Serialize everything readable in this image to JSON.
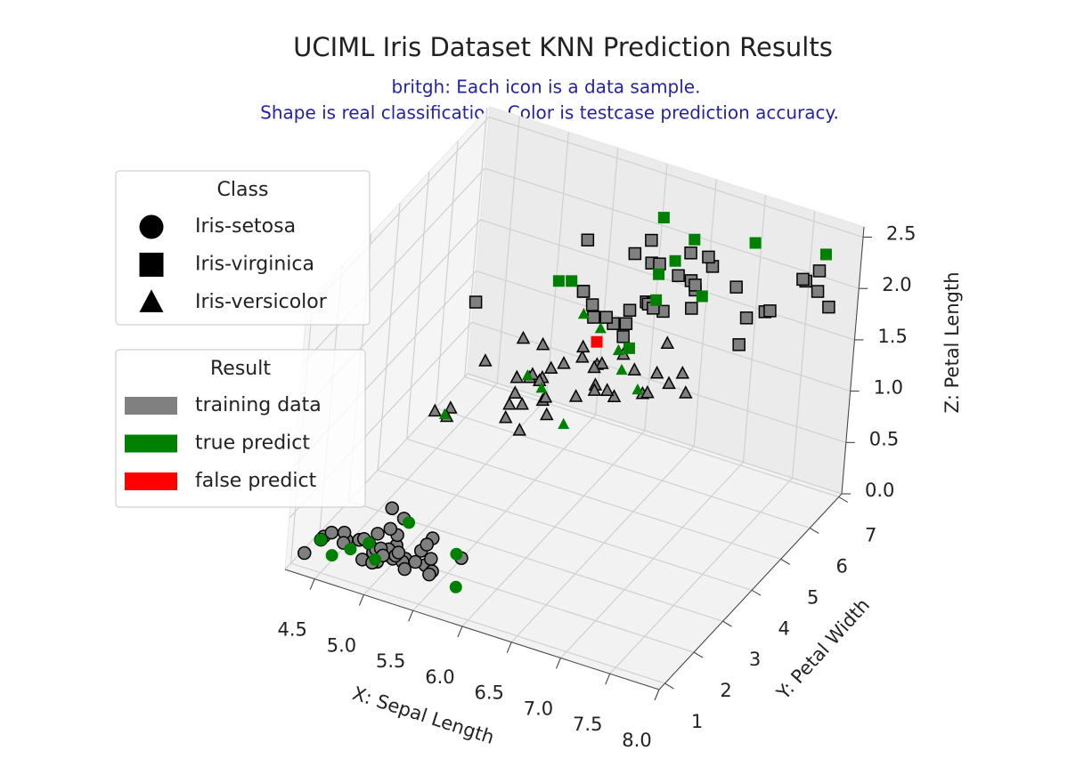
{
  "chart_data": {
    "type": "scatter3d",
    "title": "UCIML Iris Dataset KNN Prediction Results",
    "subtitle": [
      "britgh: Each icon is a data sample.",
      "Shape is real classification. Color is testcase prediction accuracy."
    ],
    "xlabel": "X: Sepal Length",
    "ylabel": "Y: Petal Width",
    "zlabel": "Z: Petal Length",
    "xlim": [
      4.2,
      8.0
    ],
    "ylim": [
      0.8,
      7.1
    ],
    "zlim": [
      0.0,
      2.6
    ],
    "xticks": [
      4.5,
      {
        "value": 5,
        "label": "5.0"
      },
      5.5,
      {
        "value": 6,
        "label": "6.0"
      },
      6.5,
      {
        "value": 7,
        "label": "7.0"
      },
      7.5,
      {
        "value": 8,
        "label": "8.0"
      }
    ],
    "yticks": [
      1,
      2,
      3,
      4,
      5,
      6,
      7
    ],
    "zticks": [
      {
        "value": 0,
        "label": "0.0"
      },
      0.5,
      {
        "value": 1,
        "label": "1.0"
      },
      1.5,
      {
        "value": 2,
        "label": "2.0"
      },
      2.5
    ],
    "grid": true,
    "legends": [
      {
        "title": "Class",
        "entries": [
          {
            "name": "Iris-setosa",
            "marker": "circle"
          },
          {
            "name": "Iris-virginica",
            "marker": "square"
          },
          {
            "name": "Iris-versicolor",
            "marker": "triangle"
          }
        ]
      },
      {
        "title": "Result",
        "entries": [
          {
            "name": "training data",
            "color": "#808080"
          },
          {
            "name": "true predict",
            "color": "#008000"
          },
          {
            "name": "false predict",
            "color": "#ff0000"
          }
        ]
      }
    ],
    "series": [
      {
        "marker": "circle",
        "color": "#808080",
        "edgecolor": "#000000",
        "x": [
          5.1,
          4.9,
          4.6,
          5.0,
          5.4,
          4.6,
          5.0,
          4.4,
          5.4,
          4.8,
          4.8,
          4.3,
          5.4,
          5.1,
          5.7,
          5.1,
          5.4,
          5.1,
          5.1,
          4.8,
          5.0,
          5.0,
          5.2,
          5.2,
          4.7,
          5.4,
          5.2,
          5.5,
          4.9,
          5.0,
          5.5,
          4.9,
          5.1,
          5.0,
          4.5,
          4.4,
          5.0,
          4.8,
          5.1,
          4.6,
          5.3,
          5.0
        ],
        "y": [
          1.4,
          1.4,
          1.5,
          1.4,
          1.7,
          1.4,
          1.5,
          1.4,
          1.5,
          1.6,
          1.4,
          1.1,
          1.3,
          1.4,
          1.7,
          1.5,
          1.7,
          1.5,
          1.7,
          1.9,
          1.6,
          1.6,
          1.5,
          1.4,
          1.6,
          1.5,
          1.5,
          1.4,
          1.5,
          1.2,
          1.3,
          1.4,
          1.5,
          1.3,
          1.3,
          1.3,
          1.6,
          1.4,
          1.6,
          1.4,
          1.5,
          1.4
        ],
        "z": [
          0.2,
          0.2,
          0.2,
          0.2,
          0.4,
          0.3,
          0.2,
          0.2,
          0.2,
          0.2,
          0.1,
          0.1,
          0.4,
          0.3,
          0.3,
          0.3,
          0.2,
          0.4,
          0.5,
          0.2,
          0.2,
          0.4,
          0.2,
          0.2,
          0.2,
          0.4,
          0.1,
          0.2,
          0.2,
          0.2,
          0.2,
          0.1,
          0.2,
          0.3,
          0.3,
          0.2,
          0.6,
          0.3,
          0.2,
          0.2,
          0.2,
          0.2
        ]
      },
      {
        "marker": "triangle",
        "color": "#808080",
        "edgecolor": "#000000",
        "x": [
          7.0,
          6.9,
          5.5,
          6.5,
          5.7,
          4.9,
          6.6,
          5.2,
          5.0,
          5.9,
          6.1,
          5.6,
          6.7,
          5.6,
          5.8,
          6.2,
          5.6,
          6.1,
          6.3,
          6.1,
          6.4,
          6.8,
          6.7,
          6.0,
          5.7,
          5.5,
          5.5,
          5.8,
          5.4,
          6.0,
          6.7,
          6.3,
          5.6,
          5.5,
          6.1,
          5.8,
          5.6,
          5.7,
          6.2,
          5.1,
          5.7
        ],
        "y": [
          4.7,
          4.9,
          4.0,
          4.6,
          4.5,
          3.3,
          4.6,
          3.9,
          3.5,
          4.2,
          4.7,
          3.6,
          4.4,
          4.5,
          4.1,
          4.5,
          3.9,
          4.0,
          4.9,
          4.7,
          4.3,
          4.8,
          5.0,
          4.5,
          3.5,
          3.8,
          3.7,
          3.9,
          4.5,
          4.5,
          4.7,
          4.4,
          4.1,
          4.0,
          4.6,
          4.0,
          4.2,
          4.2,
          4.3,
          3.0,
          4.1
        ],
        "z": [
          1.4,
          1.5,
          1.3,
          1.5,
          1.3,
          1.0,
          1.3,
          1.4,
          1.0,
          1.5,
          1.4,
          1.3,
          1.4,
          1.5,
          1.0,
          1.5,
          1.1,
          1.3,
          1.5,
          1.2,
          1.3,
          1.4,
          1.7,
          1.5,
          1.0,
          1.1,
          1.0,
          1.2,
          1.5,
          1.6,
          1.5,
          1.3,
          1.3,
          1.3,
          1.4,
          1.2,
          1.3,
          1.3,
          1.3,
          1.1,
          1.3
        ]
      },
      {
        "marker": "square",
        "color": "#808080",
        "edgecolor": "#000000",
        "x": [
          5.8,
          7.1,
          6.3,
          7.6,
          4.9,
          7.3,
          6.7,
          6.5,
          6.4,
          6.8,
          5.8,
          6.4,
          6.5,
          7.7,
          6.9,
          7.7,
          6.3,
          6.7,
          7.2,
          6.2,
          6.1,
          7.2,
          7.4,
          7.9,
          6.4,
          6.1,
          7.7,
          6.3,
          6.4,
          6.0,
          6.7,
          6.9,
          5.8,
          6.8,
          6.7,
          6.3,
          6.2,
          5.9
        ],
        "y": [
          5.1,
          5.9,
          5.6,
          6.6,
          4.5,
          6.3,
          5.8,
          5.1,
          5.3,
          5.5,
          5.1,
          5.3,
          5.5,
          6.7,
          5.7,
          6.7,
          4.9,
          5.7,
          6.0,
          4.8,
          4.9,
          5.8,
          6.1,
          6.4,
          5.6,
          5.6,
          6.1,
          5.6,
          5.5,
          4.8,
          5.6,
          5.1,
          5.1,
          5.9,
          5.2,
          5.0,
          5.4,
          5.1
        ],
        "z": [
          1.9,
          2.1,
          1.8,
          2.1,
          1.7,
          1.8,
          1.8,
          2.0,
          1.9,
          2.1,
          2.4,
          2.3,
          1.8,
          2.2,
          2.3,
          2.0,
          1.8,
          2.1,
          1.8,
          1.8,
          1.8,
          1.6,
          1.9,
          2.0,
          2.2,
          1.4,
          2.3,
          2.4,
          1.8,
          1.8,
          2.4,
          2.3,
          1.9,
          2.3,
          2.3,
          1.9,
          2.3,
          1.8
        ]
      },
      {
        "marker": "circle",
        "color": "#008000",
        "x": [
          4.7,
          4.9,
          5.8,
          5.7,
          4.6,
          4.8,
          4.4,
          5.1
        ],
        "y": [
          1.3,
          1.5,
          1.2,
          1.5,
          1.0,
          1.6,
          1.3,
          1.9
        ],
        "z": [
          0.2,
          0.1,
          0.2,
          0.4,
          0.2,
          0.2,
          0.2,
          0.4
        ]
      },
      {
        "marker": "triangle",
        "color": "#008000",
        "x": [
          6.4,
          6.3,
          6.0,
          5.9,
          6.6,
          6.0,
          5.5,
          5.0,
          5.7
        ],
        "y": [
          4.5,
          4.7,
          4.0,
          4.8,
          4.4,
          5.1,
          4.4,
          3.3,
          4.2
        ],
        "z": [
          1.5,
          1.6,
          1.0,
          1.8,
          1.4,
          1.6,
          1.2,
          1.0,
          1.2
        ]
      },
      {
        "marker": "square",
        "color": "#008000",
        "x": [
          6.3,
          6.5,
          7.2,
          5.7,
          7.7,
          5.6,
          6.4,
          6.3,
          6.9,
          6.7,
          6.5
        ],
        "y": [
          6.0,
          5.8,
          6.1,
          5.0,
          6.9,
          4.9,
          5.6,
          5.1,
          5.4,
          5.7,
          5.2
        ],
        "z": [
          2.5,
          2.2,
          2.5,
          2.0,
          2.3,
          2.0,
          2.1,
          1.5,
          2.1,
          2.5,
          2.0
        ]
      },
      {
        "marker": "square",
        "color": "#ff0000",
        "x": [
          6.0
        ],
        "y": [
          5.0
        ],
        "z": [
          1.5
        ]
      }
    ]
  }
}
